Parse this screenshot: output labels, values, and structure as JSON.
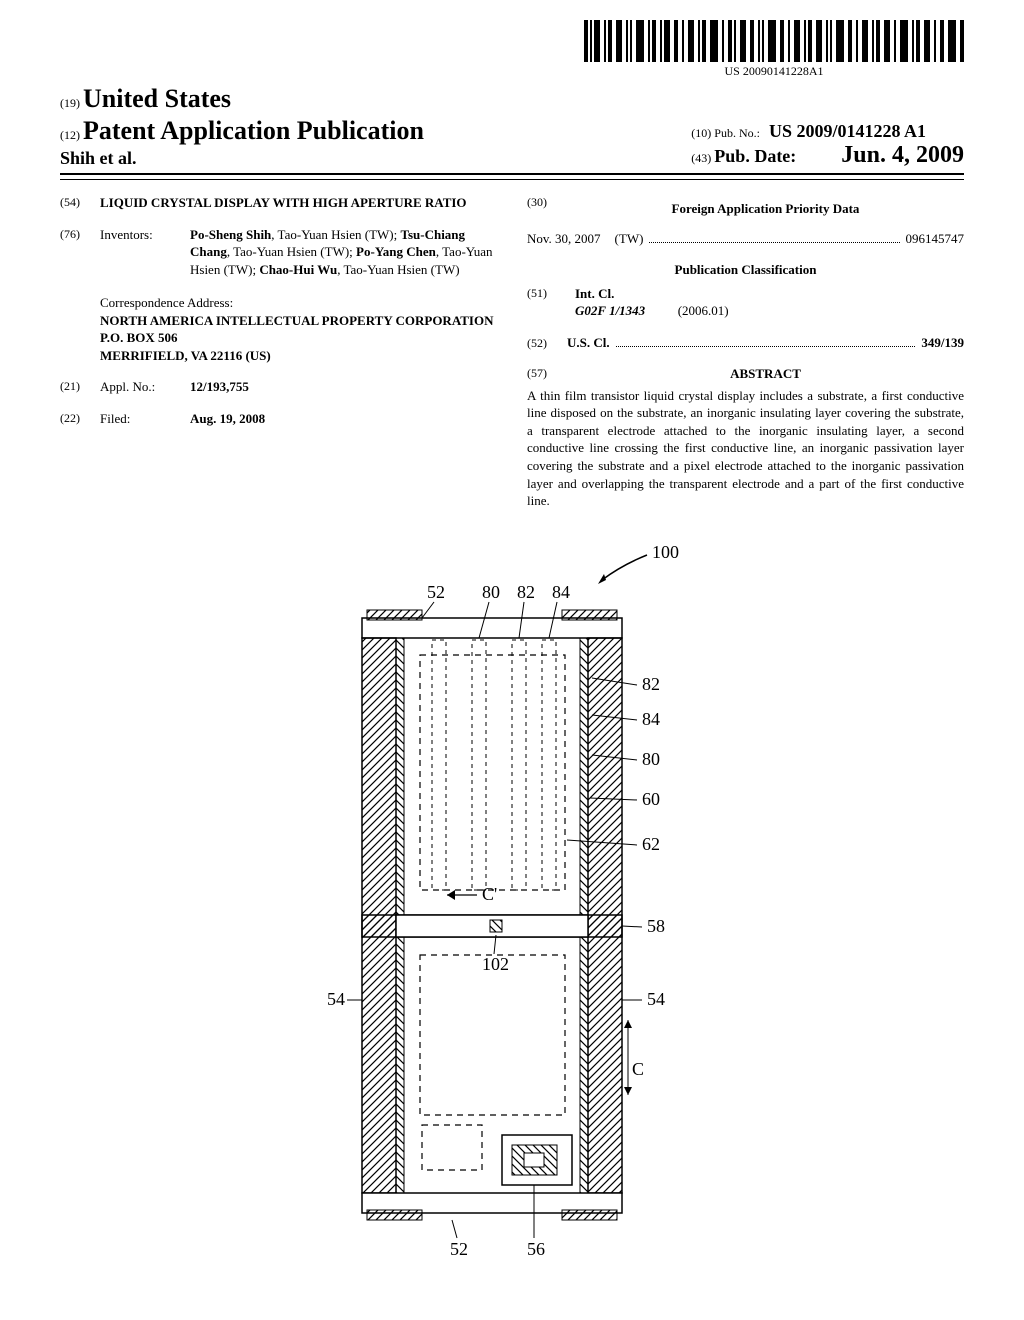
{
  "barcode": {
    "text": "US 20090141228A1"
  },
  "header": {
    "country_code": "(19)",
    "country": "United States",
    "pub_type_code": "(12)",
    "pub_type": "Patent Application Publication",
    "authors": "Shih et al.",
    "pub_no_code": "(10)",
    "pub_no_label": "Pub. No.:",
    "pub_no": "US 2009/0141228 A1",
    "pub_date_code": "(43)",
    "pub_date_label": "Pub. Date:",
    "pub_date": "Jun. 4, 2009"
  },
  "left": {
    "title_code": "(54)",
    "title": "LIQUID CRYSTAL DISPLAY WITH HIGH APERTURE RATIO",
    "inventors_code": "(76)",
    "inventors_label": "Inventors:",
    "inventors_html": "<b>Po-Sheng Shih</b>, Tao-Yuan Hsien (TW); <b>Tsu-Chiang Chang</b>, Tao-Yuan Hsien (TW); <b>Po-Yang Chen</b>, Tao-Yuan Hsien (TW); <b>Chao-Hui Wu</b>, Tao-Yuan Hsien (TW)",
    "correspondence_label": "Correspondence Address:",
    "correspondence_lines": [
      "NORTH AMERICA INTELLECTUAL PROPERTY CORPORATION",
      "P.O. BOX 506",
      "MERRIFIELD, VA 22116 (US)"
    ],
    "appl_no_code": "(21)",
    "appl_no_label": "Appl. No.:",
    "appl_no": "12/193,755",
    "filed_code": "(22)",
    "filed_label": "Filed:",
    "filed": "Aug. 19, 2008"
  },
  "right": {
    "foreign_code": "(30)",
    "foreign_heading": "Foreign Application Priority Data",
    "priority_date": "Nov. 30, 2007",
    "priority_country": "(TW)",
    "priority_number": "096145747",
    "classification_heading": "Publication Classification",
    "intcl_code": "(51)",
    "intcl_label": "Int. Cl.",
    "intcl_class": "G02F 1/1343",
    "intcl_year": "(2006.01)",
    "uscl_code": "(52)",
    "uscl_label": "U.S. Cl.",
    "uscl_value": "349/139",
    "abstract_code": "(57)",
    "abstract_label": "ABSTRACT",
    "abstract_text": "A thin film transistor liquid crystal display includes a substrate, a first conductive line disposed on the substrate, an inorganic insulating layer covering the substrate, a transparent electrode attached to the inorganic insulating layer, a second conductive line crossing the first conductive line, an inorganic passivation layer covering the substrate and a pixel electrode attached to the inorganic passivation layer and overlapping the transparent electrode and a part of the first conductive line."
  },
  "figure": {
    "ref_main": "100",
    "labels_top": [
      "52",
      "80",
      "82",
      "84"
    ],
    "labels_right": [
      "82",
      "84",
      "80",
      "60",
      "62",
      "58",
      "54",
      "C"
    ],
    "labels_left": [
      "54"
    ],
    "labels_bottom": [
      "52",
      "56"
    ],
    "label_center": "102",
    "label_cprime": "C'",
    "hatch_color": "#000000",
    "background": "#ffffff",
    "line_color": "#000000",
    "font_size": 18
  }
}
